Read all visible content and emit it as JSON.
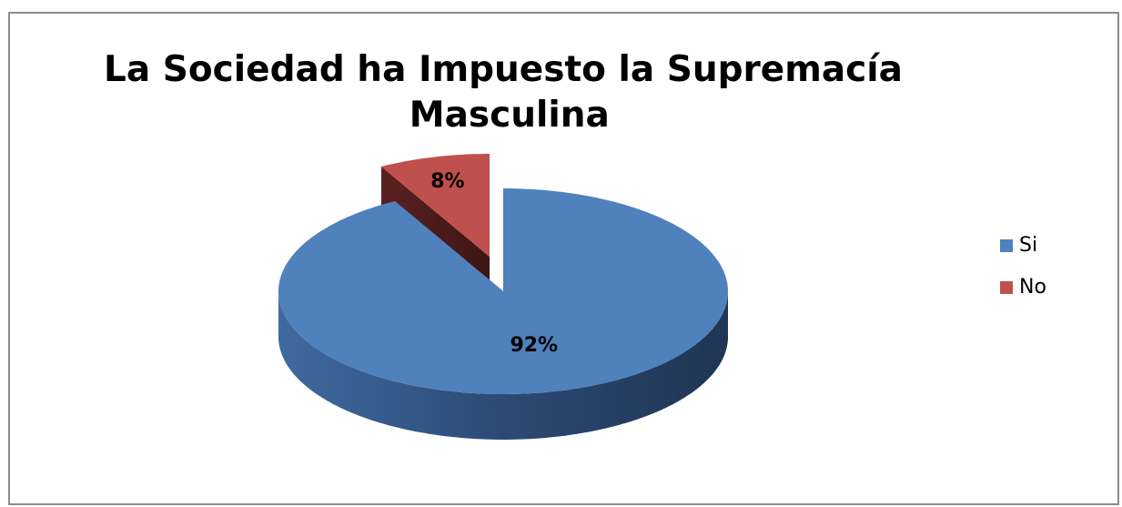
{
  "chart_data": {
    "type": "pie3d",
    "title": "La Sociedad ha Impuesto la Supremacía Masculina",
    "categories": [
      "Si",
      "No"
    ],
    "values": [
      92,
      8
    ],
    "value_labels": [
      "92%",
      "8%"
    ],
    "colors": [
      "#4f81bd",
      "#c0504d"
    ],
    "legend": "right"
  }
}
